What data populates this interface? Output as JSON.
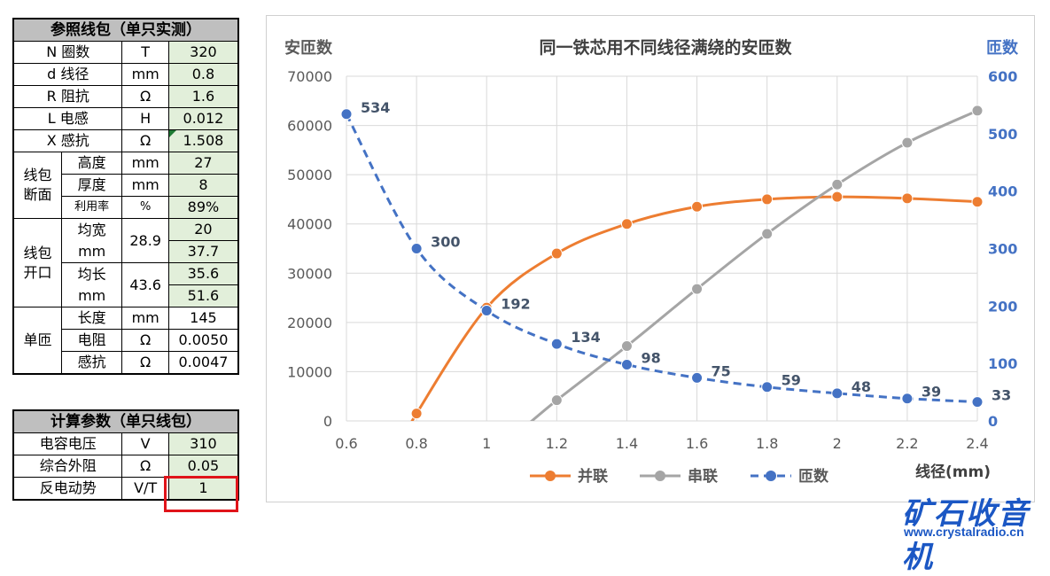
{
  "ref_table": {
    "title": "参照线包（单只实测）",
    "rows": [
      {
        "name": "N 圈数",
        "unit": "T",
        "value": "320"
      },
      {
        "name": "d 线径",
        "unit": "mm",
        "value": "0.8"
      },
      {
        "name": "R 阻抗",
        "unit": "Ω",
        "value": "1.6"
      },
      {
        "name": "L 电感",
        "unit": "H",
        "value": "0.012"
      },
      {
        "name": "X 感抗",
        "unit": "Ω",
        "value": "1.508"
      }
    ],
    "section_wire": {
      "label": "线包断面",
      "label_line1": "线包",
      "label_line2": "断面",
      "rows": [
        {
          "name": "高度",
          "unit": "mm",
          "value": "27"
        },
        {
          "name": "厚度",
          "unit": "mm",
          "value": "8"
        },
        {
          "name": "利用率",
          "unit": "%",
          "value": "89%"
        }
      ]
    },
    "section_opening": {
      "label_line1": "线包",
      "label_line2": "开口",
      "width": {
        "name_line1": "均宽",
        "name_line2": "mm",
        "mid": "28.9",
        "v1": "20",
        "v2": "37.7"
      },
      "length": {
        "name_line1": "均长",
        "name_line2": "mm",
        "mid": "43.6",
        "v1": "35.6",
        "v2": "51.6"
      }
    },
    "section_turn": {
      "label": "单匝",
      "rows": [
        {
          "name": "长度",
          "unit": "mm",
          "value": "145"
        },
        {
          "name": "电阻",
          "unit": "Ω",
          "value": "0.0050"
        },
        {
          "name": "感抗",
          "unit": "Ω",
          "value": "0.0047"
        }
      ]
    }
  },
  "calc_table": {
    "title": "计算参数（单只线包）",
    "rows": [
      {
        "name": "电容电压",
        "unit": "V",
        "value": "310"
      },
      {
        "name": "综合外阻",
        "unit": "Ω",
        "value": "0.05"
      },
      {
        "name": "反电动势",
        "unit": "V/T",
        "value": "1"
      }
    ]
  },
  "chart_data": {
    "type": "line",
    "title": "同一铁芯用不同线径满绕的安匝数",
    "xlabel": "线径(mm)",
    "ylabel_left": "安匝数",
    "ylabel_right": "匝数",
    "x": [
      0.6,
      0.8,
      1.0,
      1.2,
      1.4,
      1.6,
      1.8,
      2.0,
      2.2,
      2.4
    ],
    "xticks": [
      "0.6",
      "0.8",
      "1",
      "1.2",
      "1.4",
      "1.6",
      "1.8",
      "2",
      "2.2",
      "2.4"
    ],
    "ylim_left": [
      0,
      70000
    ],
    "yticks_left": [
      "0",
      "10000",
      "20000",
      "30000",
      "40000",
      "50000",
      "60000",
      "70000"
    ],
    "ylim_right": [
      0,
      600
    ],
    "yticks_right": [
      "0",
      "100",
      "200",
      "300",
      "400",
      "500",
      "600"
    ],
    "series": [
      {
        "name": "并联",
        "axis": "left",
        "style": "solid",
        "color": "#ed7d31",
        "x": [
          0.8,
          1.0,
          1.2,
          1.4,
          1.6,
          1.8,
          2.0,
          2.2,
          2.4
        ],
        "values": [
          1500,
          23000,
          34000,
          40000,
          43500,
          45000,
          45500,
          45200,
          44500
        ]
      },
      {
        "name": "串联",
        "axis": "left",
        "style": "solid",
        "color": "#a5a5a5",
        "x": [
          1.2,
          1.4,
          1.6,
          1.8,
          2.0,
          2.2,
          2.4
        ],
        "values": [
          4200,
          15200,
          26800,
          38000,
          48000,
          56500,
          63000
        ]
      },
      {
        "name": "匝数",
        "axis": "right",
        "style": "dashed",
        "color": "#4472c4",
        "x": [
          0.6,
          0.8,
          1.0,
          1.2,
          1.4,
          1.6,
          1.8,
          2.0,
          2.2,
          2.4
        ],
        "values": [
          534,
          300,
          192,
          134,
          98,
          75,
          59,
          48,
          39,
          33
        ],
        "labels": [
          "534",
          "300",
          "192",
          "134",
          "98",
          "75",
          "59",
          "48",
          "39",
          "33"
        ]
      }
    ],
    "legend": [
      "并联",
      "串联",
      "匝数"
    ],
    "legend_position": "bottom",
    "grid": true
  },
  "watermark": {
    "title": "矿石收音机",
    "url": "www.crystalradio.cn"
  },
  "colors": {
    "header_gray": "#bfbfbf",
    "cell_green": "#e2efda",
    "highlight_red": "#e0141a",
    "brand_blue": "#1b57c4"
  }
}
